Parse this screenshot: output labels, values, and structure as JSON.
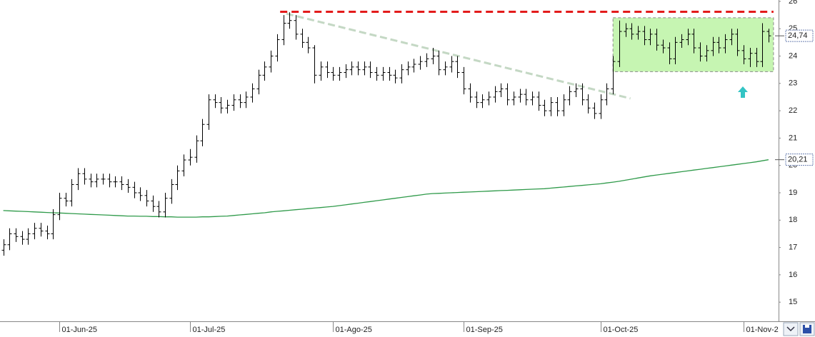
{
  "chart_data": {
    "type": "ohlc",
    "categories": [
      null,
      null,
      null,
      null,
      null,
      null,
      null,
      null,
      null,
      "01-Jun-25",
      null,
      null,
      null,
      null,
      null,
      null,
      null,
      null,
      null,
      null,
      null,
      null,
      null,
      null,
      null,
      null,
      null,
      null,
      null,
      null,
      "01-Jul-25",
      null,
      null,
      null,
      null,
      null,
      null,
      null,
      null,
      null,
      null,
      null,
      null,
      null,
      null,
      null,
      null,
      null,
      null,
      null,
      null,
      null,
      null,
      "01-Ago-25",
      null,
      null,
      null,
      null,
      null,
      null,
      null,
      null,
      null,
      null,
      null,
      null,
      null,
      null,
      null,
      null,
      null,
      null,
      null,
      null,
      "01-Sep-25",
      null,
      null,
      null,
      null,
      null,
      null,
      null,
      null,
      null,
      null,
      null,
      null,
      null,
      null,
      null,
      null,
      null,
      null,
      null,
      null,
      null,
      "01-Oct-25",
      null,
      null,
      null,
      null,
      null,
      null,
      null,
      null,
      null,
      null,
      null,
      null,
      null,
      null,
      null,
      null,
      null,
      null,
      null,
      null,
      null,
      null,
      "01-Nov-2",
      null,
      null,
      null,
      null
    ],
    "open": [
      16.9,
      17.1,
      17.5,
      17.4,
      17.3,
      17.5,
      17.7,
      17.6,
      17.5,
      18.2,
      18.8,
      18.7,
      19.3,
      19.7,
      19.5,
      19.4,
      19.5,
      19.5,
      19.4,
      19.4,
      19.3,
      19.2,
      19.0,
      18.9,
      18.7,
      18.5,
      18.3,
      18.8,
      19.3,
      19.8,
      20.2,
      20.3,
      20.9,
      21.5,
      22.4,
      22.3,
      22.1,
      22.2,
      22.4,
      22.3,
      22.5,
      22.8,
      23.3,
      23.6,
      24.0,
      24.6,
      25.2,
      25.3,
      24.8,
      24.5,
      24.3,
      23.3,
      23.6,
      23.4,
      23.3,
      23.4,
      23.5,
      23.6,
      23.5,
      23.6,
      23.4,
      23.3,
      23.4,
      23.3,
      23.2,
      23.5,
      23.6,
      23.7,
      23.8,
      23.9,
      24.0,
      23.5,
      23.6,
      23.8,
      23.4,
      22.8,
      22.5,
      22.3,
      22.4,
      22.5,
      22.7,
      22.8,
      22.4,
      22.5,
      22.6,
      22.4,
      22.5,
      22.2,
      22.0,
      22.3,
      22.0,
      22.4,
      22.7,
      22.8,
      22.4,
      22.1,
      21.9,
      22.4,
      22.8,
      23.8,
      24.9,
      25.0,
      24.8,
      24.9,
      24.6,
      24.8,
      24.4,
      24.3,
      23.9,
      24.5,
      24.6,
      24.8,
      24.3,
      24.0,
      24.2,
      24.5,
      24.3,
      24.6,
      24.8,
      24.2,
      23.9,
      24.1,
      23.8,
      24.9
    ],
    "high": [
      17.3,
      17.7,
      17.7,
      17.6,
      17.7,
      17.9,
      17.9,
      17.8,
      18.4,
      19.0,
      19.0,
      19.5,
      19.9,
      19.9,
      19.7,
      19.7,
      19.7,
      19.7,
      19.6,
      19.6,
      19.5,
      19.4,
      19.2,
      19.1,
      18.9,
      18.7,
      19.0,
      19.5,
      20.0,
      20.4,
      20.6,
      21.1,
      21.7,
      22.6,
      22.6,
      22.5,
      22.4,
      22.6,
      22.6,
      22.7,
      23.0,
      23.5,
      23.8,
      24.2,
      24.8,
      25.5,
      25.6,
      25.5,
      25.0,
      24.7,
      24.4,
      23.8,
      23.8,
      23.6,
      23.6,
      23.7,
      23.8,
      23.8,
      23.8,
      23.8,
      23.6,
      23.6,
      23.6,
      23.5,
      23.7,
      23.8,
      23.9,
      24.0,
      24.1,
      24.3,
      24.2,
      23.8,
      24.0,
      24.0,
      23.6,
      23.0,
      22.7,
      22.6,
      22.7,
      22.9,
      23.0,
      23.0,
      22.7,
      22.8,
      22.8,
      22.7,
      22.7,
      22.4,
      22.5,
      22.5,
      22.6,
      22.9,
      23.0,
      23.0,
      22.6,
      22.3,
      22.6,
      23.0,
      24.0,
      25.3,
      25.2,
      25.2,
      25.1,
      25.1,
      25.0,
      25.0,
      24.6,
      24.5,
      24.7,
      24.8,
      25.0,
      25.0,
      24.5,
      24.4,
      24.7,
      24.7,
      24.8,
      25.0,
      25.0,
      24.4,
      24.3,
      24.3,
      25.2,
      25.0
    ],
    "low": [
      16.7,
      16.9,
      17.2,
      17.1,
      17.1,
      17.3,
      17.4,
      17.3,
      17.3,
      18.0,
      18.5,
      18.5,
      19.1,
      19.3,
      19.2,
      19.2,
      19.3,
      19.2,
      19.2,
      19.1,
      19.0,
      18.8,
      18.7,
      18.5,
      18.3,
      18.1,
      18.1,
      18.6,
      19.1,
      19.6,
      20.0,
      20.1,
      20.7,
      21.3,
      22.1,
      21.9,
      21.9,
      22.0,
      22.1,
      22.1,
      22.3,
      22.6,
      23.1,
      23.4,
      23.8,
      24.4,
      25.0,
      24.6,
      24.3,
      24.1,
      23.0,
      23.1,
      23.2,
      23.1,
      23.1,
      23.2,
      23.3,
      23.3,
      23.3,
      23.2,
      23.1,
      23.1,
      23.1,
      23.0,
      23.0,
      23.3,
      23.4,
      23.5,
      23.6,
      23.7,
      23.3,
      23.3,
      23.4,
      23.2,
      22.6,
      22.3,
      22.1,
      22.1,
      22.2,
      22.3,
      22.5,
      22.2,
      22.2,
      22.3,
      22.2,
      22.2,
      22.0,
      21.8,
      21.8,
      21.8,
      21.8,
      22.2,
      22.5,
      22.2,
      21.9,
      21.7,
      21.7,
      22.2,
      22.6,
      23.6,
      24.7,
      24.6,
      24.6,
      24.4,
      24.4,
      24.2,
      24.1,
      23.7,
      23.7,
      24.3,
      24.4,
      24.1,
      23.8,
      23.8,
      24.0,
      24.1,
      24.1,
      24.4,
      24.0,
      23.7,
      23.6,
      23.6,
      23.6,
      24.5
    ],
    "close": [
      17.1,
      17.5,
      17.4,
      17.3,
      17.5,
      17.7,
      17.6,
      17.5,
      18.2,
      18.8,
      18.7,
      19.3,
      19.7,
      19.5,
      19.4,
      19.5,
      19.5,
      19.4,
      19.4,
      19.3,
      19.2,
      19.0,
      18.9,
      18.7,
      18.5,
      18.3,
      18.8,
      19.3,
      19.8,
      20.2,
      20.3,
      20.9,
      21.5,
      22.4,
      22.3,
      22.1,
      22.2,
      22.4,
      22.3,
      22.5,
      22.8,
      23.3,
      23.6,
      24.0,
      24.6,
      25.2,
      25.3,
      24.8,
      24.5,
      24.3,
      23.3,
      23.6,
      23.4,
      23.3,
      23.4,
      23.5,
      23.6,
      23.5,
      23.6,
      23.4,
      23.3,
      23.4,
      23.3,
      23.2,
      23.5,
      23.6,
      23.7,
      23.8,
      23.9,
      24.0,
      23.5,
      23.6,
      23.8,
      23.4,
      22.8,
      22.5,
      22.3,
      22.4,
      22.5,
      22.7,
      22.8,
      22.4,
      22.5,
      22.6,
      22.4,
      22.5,
      22.2,
      22.0,
      22.3,
      22.0,
      22.4,
      22.7,
      22.8,
      22.4,
      22.1,
      21.9,
      22.4,
      22.8,
      23.8,
      24.9,
      25.0,
      24.8,
      24.9,
      24.6,
      24.8,
      24.4,
      24.3,
      23.9,
      24.5,
      24.6,
      24.8,
      24.3,
      24.0,
      24.2,
      24.5,
      24.3,
      24.6,
      24.8,
      24.2,
      23.9,
      24.1,
      23.8,
      24.9,
      24.74
    ],
    "ma": [
      18.35,
      18.34,
      18.33,
      18.32,
      18.31,
      18.3,
      18.29,
      18.28,
      18.27,
      18.26,
      18.25,
      18.24,
      18.23,
      18.22,
      18.21,
      18.2,
      18.19,
      18.18,
      18.17,
      18.16,
      18.15,
      18.15,
      18.14,
      18.14,
      18.13,
      18.13,
      18.12,
      18.12,
      18.11,
      18.11,
      18.11,
      18.11,
      18.12,
      18.12,
      18.13,
      18.14,
      18.15,
      18.17,
      18.19,
      18.21,
      18.23,
      18.25,
      18.27,
      18.3,
      18.32,
      18.34,
      18.36,
      18.38,
      18.4,
      18.42,
      18.44,
      18.46,
      18.48,
      18.5,
      18.53,
      18.56,
      18.59,
      18.62,
      18.65,
      18.68,
      18.71,
      18.74,
      18.77,
      18.8,
      18.83,
      18.86,
      18.89,
      18.92,
      18.95,
      18.97,
      18.98,
      18.99,
      19.0,
      19.01,
      19.02,
      19.03,
      19.04,
      19.05,
      19.06,
      19.07,
      19.08,
      19.09,
      19.1,
      19.11,
      19.12,
      19.13,
      19.14,
      19.15,
      19.17,
      19.19,
      19.21,
      19.23,
      19.25,
      19.27,
      19.29,
      19.31,
      19.33,
      19.36,
      19.39,
      19.42,
      19.46,
      19.5,
      19.54,
      19.58,
      19.62,
      19.65,
      19.68,
      19.71,
      19.74,
      19.77,
      19.8,
      19.83,
      19.86,
      19.89,
      19.92,
      19.95,
      19.98,
      20.01,
      20.04,
      20.07,
      20.1,
      20.13,
      20.17,
      20.21
    ],
    "bar_color": "#000000",
    "ma_color": "#2f9a4a",
    "ylim": [
      14.3,
      26.05
    ],
    "yticks": [
      15,
      16,
      17,
      18,
      19,
      20,
      21,
      22,
      23,
      24,
      25,
      26
    ],
    "price_labels": [
      {
        "value": 24.74,
        "label": "24,74"
      },
      {
        "value": 20.21,
        "label": "20,21"
      }
    ],
    "resistance": {
      "y": 25.62,
      "x": [
        44.5,
        123.8
      ],
      "color": "#e31b1b"
    },
    "trendline": {
      "x": [
        45.5,
        100.8
      ],
      "y": [
        25.55,
        22.45
      ],
      "color": "#c4d8c4"
    },
    "box": {
      "x": [
        98,
        123.8
      ],
      "y": [
        23.43,
        25.4
      ],
      "color": "#c6f5b2"
    }
  }
}
